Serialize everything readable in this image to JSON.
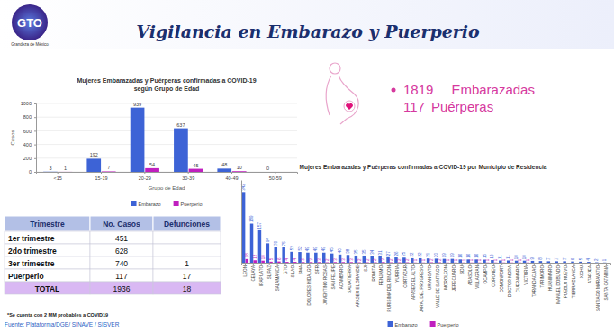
{
  "header": {
    "logo": "GTO",
    "logo_subtitle": "Grandeza de México",
    "title": "Vigilancia en Embarazo y Puerperio"
  },
  "summary": [
    {
      "count": 1819,
      "label": "Embarazadas"
    },
    {
      "count": 117,
      "label": "Puérperas"
    }
  ],
  "chart_data": [
    {
      "type": "bar",
      "title": "Mujeres Embarazadas y Puérperas confirmadas a COVID-19",
      "subtitle": "según Grupo de Edad",
      "x_label": "Grupo de Edad",
      "y_label": "Casos",
      "categories": [
        "<15",
        "15-19",
        "20-29",
        "30-39",
        "40-49",
        "50-59"
      ],
      "series": [
        {
          "name": "Embarazo",
          "color": "#3d63d6",
          "values": [
            3,
            192,
            939,
            637,
            48,
            0
          ]
        },
        {
          "name": "Puerperio",
          "color": "#c01fbf",
          "values": [
            1,
            7,
            54,
            45,
            10,
            null
          ]
        }
      ],
      "ylim": [
        0,
        1000
      ],
      "yticks": [
        0,
        200,
        400,
        600,
        800,
        1000
      ],
      "grid": true,
      "legend": "bottom",
      "data_labels": true
    },
    {
      "type": "bar",
      "title": "Mujeres Embarazadas y Puérperas confirmadas a COVID-19 por Municipio de Residencia",
      "categories": [
        "LEON",
        "CELAYA",
        "IRAPUATO",
        "SL PAZ",
        "SALAMANCA",
        "GTO",
        "SILAO",
        "SMA",
        "DOLORES HIDALGO",
        "SFR",
        "JUVENTINO ROSAS",
        "SAN FELIPE",
        "ACAMBARO",
        "SALVATIERRA",
        "APASEO EL GRANDE",
        "SJI",
        "ROMITA",
        "PENJAMO",
        "PURISIMA DEL RINCON",
        "YURIRIA",
        "CORTAZAR",
        "APASEO EL ALTO",
        "JARAL DEL PROGRESO",
        "URIANGATO",
        "VALLE DE SANTIAGO",
        "MOROLEON",
        "JERECUARO",
        "SDU",
        "ABASOLO",
        "VILLAGRAN",
        "OCAMPO",
        "CORONEO",
        "COMONFORT",
        "DOCTOR MORA",
        "CUERAMARO",
        "VICTORIA",
        "TARANDACUAO",
        "TARIMORO",
        "HUANIMARO",
        "MANUEL DOBLADO",
        "PUEBLO NUEVO",
        "TIERRA BLANCA",
        "XICHU",
        "ATARJEA",
        "SANTIAGO MARAVATIO",
        "SANTA CATARINA"
      ],
      "series": [
        {
          "name": "Embarazo",
          "color": "#3d63d6",
          "values": [
            342,
            189,
            157,
            94,
            76,
            75,
            53,
            52,
            49,
            49,
            49,
            45,
            40,
            38,
            35,
            35,
            34,
            31,
            27,
            26,
            25,
            22,
            22,
            21,
            20,
            19,
            19,
            16,
            16,
            16,
            15,
            13,
            11,
            11,
            10,
            10,
            9,
            8,
            7,
            7,
            7,
            6,
            5,
            4,
            2,
            1
          ]
        },
        {
          "name": "Puerperio",
          "color": "#c01fbf",
          "values": [
            18,
            12,
            10,
            5,
            6,
            4,
            4,
            3,
            3,
            3,
            2,
            3,
            3,
            3,
            2,
            2,
            2,
            3,
            2,
            2,
            2,
            1,
            1,
            2,
            2,
            1,
            1,
            1,
            1,
            1,
            1,
            1,
            1,
            1,
            1,
            1,
            null,
            null,
            null,
            null,
            null,
            null,
            null,
            null,
            null,
            null
          ]
        }
      ],
      "ylim": [
        0,
        400
      ],
      "tick_labels": "x",
      "legend": "bottom",
      "data_labels": true
    }
  ],
  "table": {
    "columns": [
      "Trimestre",
      "No. Casos",
      "Defunciones"
    ],
    "rows": [
      [
        "1er trimestre",
        451,
        null
      ],
      [
        "2do trimestre",
        628,
        null
      ],
      [
        "3er trimestre",
        740,
        1
      ],
      [
        "Puerperio",
        117,
        17
      ],
      [
        "TOTAL",
        1936,
        18
      ]
    ]
  },
  "notes": [
    "*Se cuenta con 2 MM probables a COVID19",
    "Fuente: Plataforma/DGE/ SINAVE / SISVER"
  ]
}
